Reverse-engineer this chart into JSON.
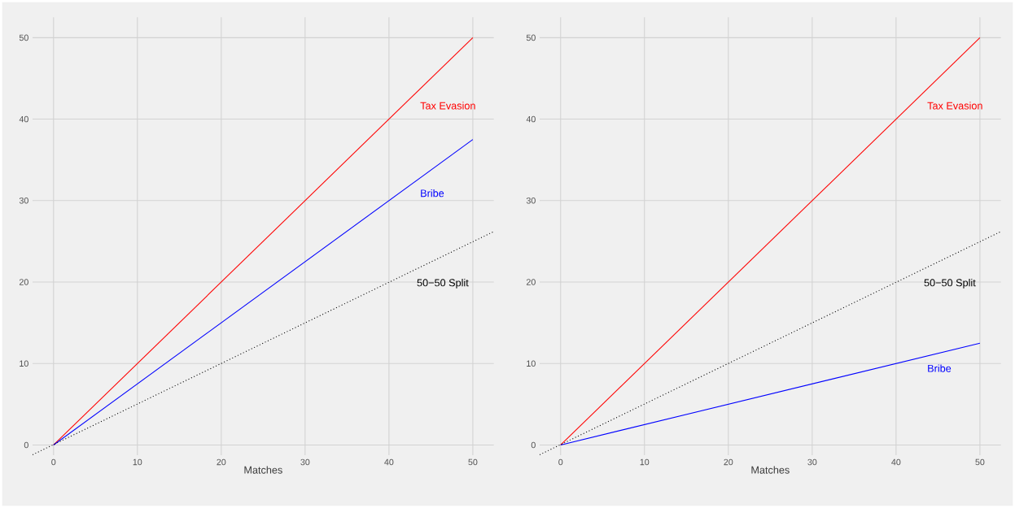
{
  "chart_data": [
    {
      "type": "line",
      "xlabel": "Matches",
      "xlim": [
        -2.5,
        52.5
      ],
      "ylim": [
        -1.25,
        52.5
      ],
      "xticks": [
        0,
        10,
        20,
        30,
        40,
        50
      ],
      "yticks": [
        0,
        10,
        20,
        30,
        40,
        50
      ],
      "grid": true,
      "series": [
        {
          "name": "Tax Evasion",
          "color": "#ff0000",
          "x": [
            0,
            50
          ],
          "values": [
            0,
            50
          ],
          "line_style": "solid"
        },
        {
          "name": "Bribe",
          "color": "#0000ff",
          "x": [
            0,
            50
          ],
          "values": [
            0,
            37.5
          ],
          "line_style": "solid"
        },
        {
          "name": "50−50 Split",
          "color": "#000000",
          "x": [
            -2.5,
            52.5
          ],
          "values": [
            -1.2,
            26.2
          ],
          "line_style": "dotted"
        }
      ]
    },
    {
      "type": "line",
      "xlabel": "Matches",
      "xlim": [
        -2.5,
        52.5
      ],
      "ylim": [
        -1.25,
        52.5
      ],
      "xticks": [
        0,
        10,
        20,
        30,
        40,
        50
      ],
      "yticks": [
        0,
        10,
        20,
        30,
        40,
        50
      ],
      "grid": true,
      "series": [
        {
          "name": "Tax Evasion",
          "color": "#ff0000",
          "x": [
            0,
            50
          ],
          "values": [
            0,
            50
          ],
          "line_style": "solid"
        },
        {
          "name": "Bribe",
          "color": "#0000ff",
          "x": [
            0,
            50
          ],
          "values": [
            0,
            12.5
          ],
          "line_style": "solid"
        },
        {
          "name": "50−50 Split",
          "color": "#000000",
          "x": [
            -2.5,
            52.5
          ],
          "values": [
            -1.2,
            26.2
          ],
          "line_style": "dotted"
        }
      ]
    }
  ]
}
